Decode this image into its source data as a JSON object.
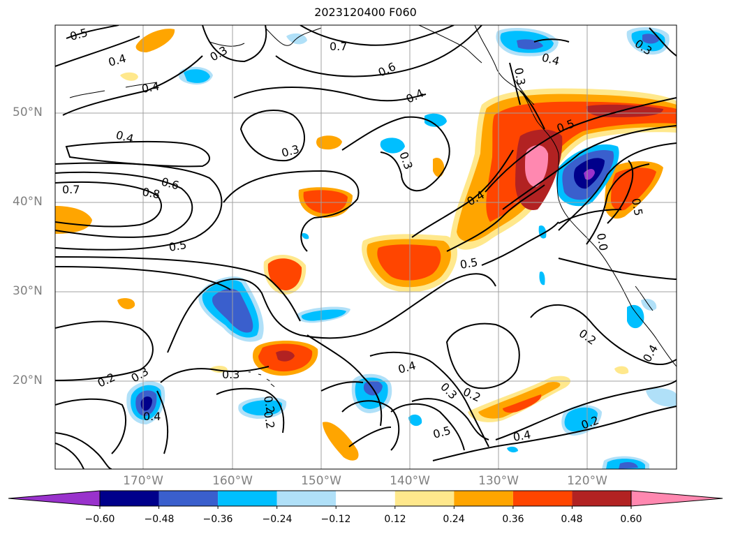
{
  "title": "2023120400 F060",
  "lat_labels": [
    "50°N",
    "40°N",
    "30°N",
    "20°N"
  ],
  "lon_labels": [
    "170°W",
    "160°W",
    "150°W",
    "140°W",
    "130°W",
    "120°W"
  ],
  "colorbar": {
    "ticks": [
      "−0.60",
      "−0.48",
      "−0.36",
      "−0.24",
      "−0.12",
      "0.12",
      "0.24",
      "0.36",
      "0.48",
      "0.60"
    ],
    "colors": [
      "#9932cc",
      "#00008b",
      "#3a5fcd",
      "#00bfff",
      "#b0e0f8",
      "#ffffff",
      "#ffe88c",
      "#ffa500",
      "#ff4500",
      "#b22222",
      "#ff88b0"
    ]
  },
  "contour_labels": [
    "0.5",
    "0.4",
    "0.4",
    "0.3",
    "0.7",
    "0.6",
    "0.4",
    "0.3",
    "0.3",
    "0.4",
    "0.7",
    "0.8",
    "0.6",
    "0.5",
    "0.3",
    "0.4",
    "0.5",
    "0.5",
    "0.2",
    "0.2",
    "0.3",
    "0.4",
    "0.3",
    "0.2",
    "0.2",
    "0.4",
    "0.5",
    "0.4",
    "0.2",
    "0.3",
    "0.4",
    "0.5",
    "0.0",
    "0.4",
    "0.2",
    "0.3"
  ]
}
